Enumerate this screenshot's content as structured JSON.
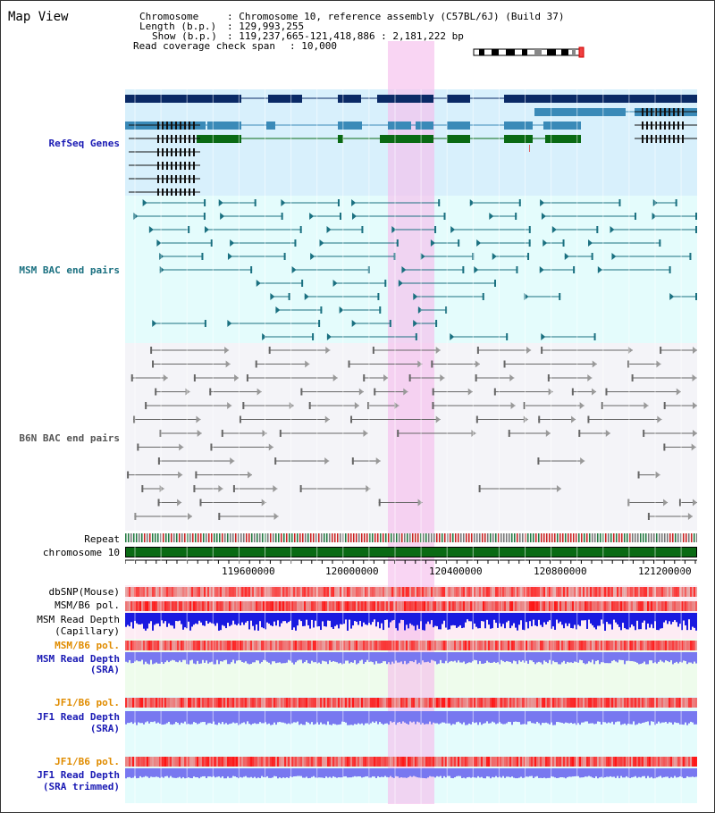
{
  "page_title": "Map View",
  "header": {
    "chromosome_label": "Chromosome",
    "chromosome_value": ": Chromosome 10, reference assembly (C57BL/6J) (Build 37)",
    "length_label": "Length (b.p.)",
    "length_value": ": 129,993,255",
    "show_label": "Show (b.p.)",
    "show_value": ": 119,237,665-121,418,886 : 2,181,222 bp",
    "coverage_label": "Read coverage check span",
    "coverage_value": ": 10,000"
  },
  "tracks": {
    "refseq": "RefSeq Genes",
    "msm_bac": "MSM BAC end pairs",
    "b6n_bac": "B6N BAC end pairs",
    "repeat": "Repeat",
    "chromosome": "chromosome 10"
  },
  "axis": {
    "ticks": [
      "119600000",
      "120000000",
      "120400000",
      "120800000",
      "121200000"
    ]
  },
  "lower_tracks": {
    "dbsnp": "dbSNP(Mouse)",
    "msm_pol_1": "MSM/B6 pol.",
    "msm_depth_cap_1": "MSM Read Depth",
    "msm_depth_cap_2": "(Capillary)",
    "msm_pol_2": "MSM/B6 pol.",
    "msm_depth_sra_1": "MSM Read Depth",
    "msm_depth_sra_2": "(SRA)",
    "jf1_pol_1": "JF1/B6 pol.",
    "jf1_depth_sra_1": "JF1 Read Depth",
    "jf1_depth_sra_2": "(SRA)",
    "jf1_pol_2": "JF1/B6 pol.",
    "jf1_depth_trim_1": "JF1 Read Depth",
    "jf1_depth_trim_2": "(SRA trimmed)"
  },
  "colors": {
    "refseq_dark": "#0a2a66",
    "refseq_mid": "#3a8ab8",
    "refseq_green": "#0a6a14",
    "msm_line": "#1a7080",
    "b6n_line": "#666666",
    "highlight": "#f8d0f0",
    "chrom_green": "#0a6a14",
    "snp_red": "#e83030",
    "depth_blue": "#1a1ae0",
    "depth_light": "#7878f0"
  }
}
